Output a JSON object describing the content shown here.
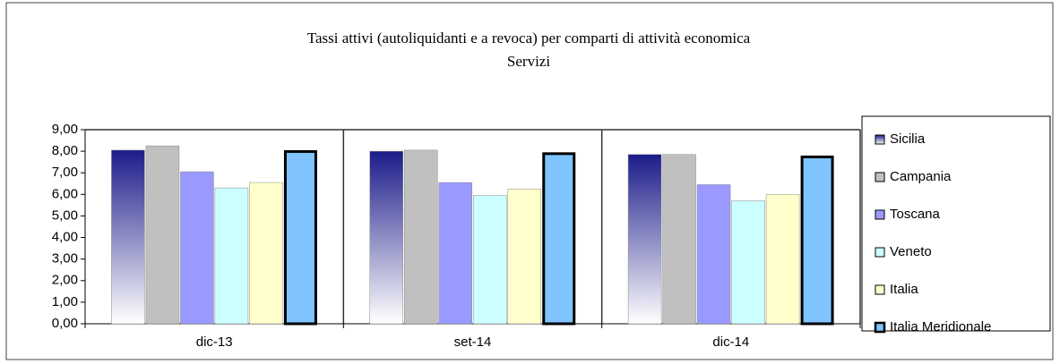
{
  "chart_data": {
    "type": "bar",
    "title": "Tassi attivi (autoliquidanti e a revoca) per comparti di attività economica",
    "subtitle": "Servizi",
    "categories": [
      "dic-13",
      "set-14",
      "dic-14"
    ],
    "series": [
      {
        "name": "Sicilia",
        "color": "#1c1c8a",
        "gradient": true,
        "values": [
          8.05,
          8.0,
          7.85
        ]
      },
      {
        "name": "Campania",
        "color": "#c0c0c0",
        "values": [
          8.25,
          8.05,
          7.85
        ]
      },
      {
        "name": "Toscana",
        "color": "#9999ff",
        "values": [
          7.05,
          6.55,
          6.45
        ]
      },
      {
        "name": "Veneto",
        "color": "#ccffff",
        "values": [
          6.3,
          5.95,
          5.7
        ]
      },
      {
        "name": "Italia",
        "color": "#ffffcc",
        "values": [
          6.55,
          6.25,
          6.0
        ]
      },
      {
        "name": "Italia Meridionale",
        "color": "#7fc4ff",
        "border": "#000000",
        "values": [
          8.05,
          7.95,
          7.8
        ]
      }
    ],
    "ylim": [
      0,
      9
    ],
    "yticks": [
      {
        "value": 0,
        "label": "0,00"
      },
      {
        "value": 1,
        "label": "1,00"
      },
      {
        "value": 2,
        "label": "2,00"
      },
      {
        "value": 3,
        "label": "3,00"
      },
      {
        "value": 4,
        "label": "4,00"
      },
      {
        "value": 5,
        "label": "5,00"
      },
      {
        "value": 6,
        "label": "6,00"
      },
      {
        "value": 7,
        "label": "7,00"
      },
      {
        "value": 8,
        "label": "8,00"
      },
      {
        "value": 9,
        "label": "9,00"
      }
    ],
    "legend": "right"
  }
}
